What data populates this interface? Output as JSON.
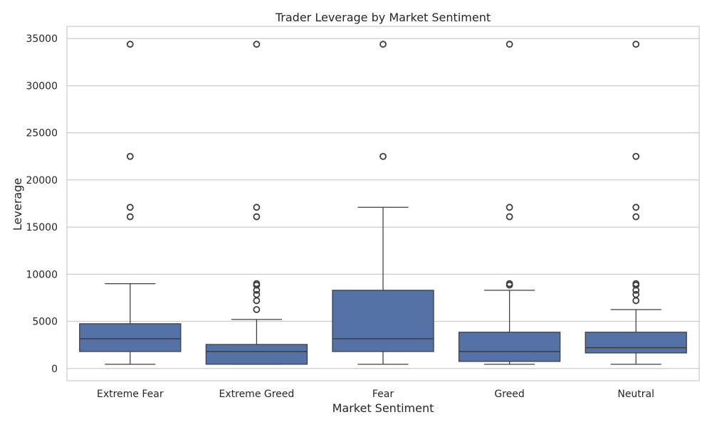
{
  "chart_data": {
    "type": "box",
    "title": "Trader Leverage by Market Sentiment",
    "xlabel": "Market Sentiment",
    "ylabel": "Leverage",
    "ylim": [
      -1300,
      36300
    ],
    "yticks": [
      0,
      5000,
      10000,
      15000,
      20000,
      25000,
      30000,
      35000
    ],
    "grid": true,
    "categories": [
      "Extreme Fear",
      "Extreme Greed",
      "Fear",
      "Greed",
      "Neutral"
    ],
    "series": [
      {
        "boxes": [
          {
            "whisker_low": 450,
            "q1": 1800,
            "median": 3150,
            "q3": 4750,
            "whisker_high": 9000,
            "outliers": [
              16100,
              17100,
              22500,
              34400
            ]
          },
          {
            "whisker_low": 450,
            "q1": 450,
            "median": 1800,
            "q3": 2550,
            "whisker_high": 5200,
            "outliers": [
              6250,
              7200,
              7850,
              8300,
              8850,
              9000,
              16100,
              17100,
              34400
            ]
          },
          {
            "whisker_low": 450,
            "q1": 1800,
            "median": 3150,
            "q3": 8300,
            "whisker_high": 17100,
            "outliers": [
              22500,
              34400
            ]
          },
          {
            "whisker_low": 450,
            "q1": 750,
            "median": 1800,
            "q3": 3850,
            "whisker_high": 8300,
            "outliers": [
              8850,
              9000,
              16100,
              17100,
              34400
            ]
          },
          {
            "whisker_low": 450,
            "q1": 1650,
            "median": 2200,
            "q3": 3850,
            "whisker_high": 6250,
            "outliers": [
              7200,
              7850,
              8300,
              8850,
              9000,
              16100,
              17100,
              22500,
              34400
            ]
          }
        ]
      }
    ],
    "colors": {
      "box": "#5572a6",
      "line": "#3d3d3d",
      "grid": "#cccccc",
      "axis": "#cccccc"
    }
  }
}
